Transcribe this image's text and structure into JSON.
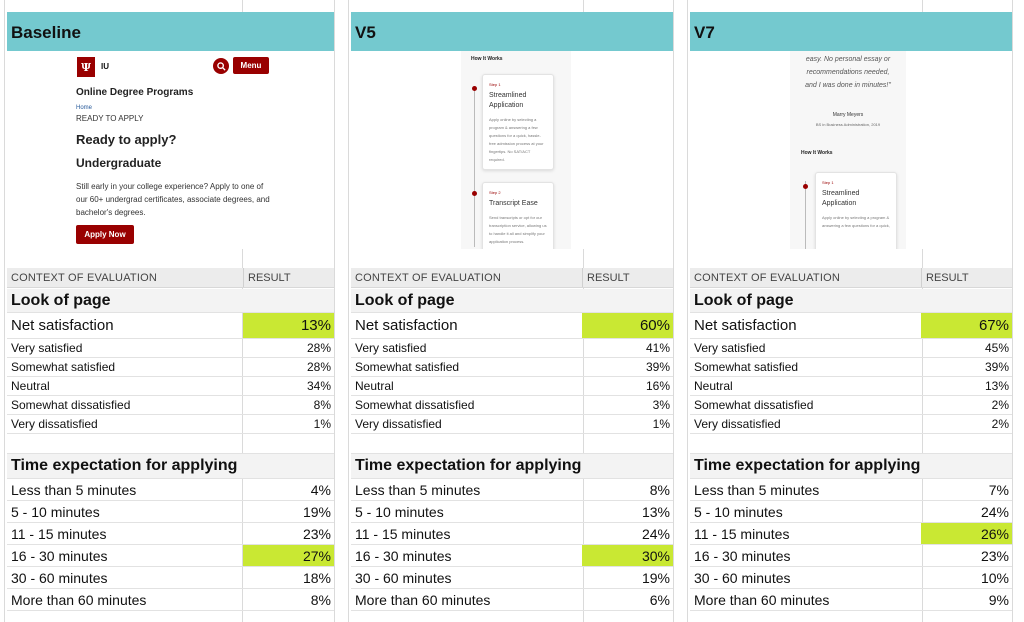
{
  "columns": [
    {
      "title": "Baseline",
      "preview": {
        "logo_text": "IU",
        "logo_mark": "Ψ",
        "menu_label": "Menu",
        "heading": "Online Degree Programs",
        "breadcrumb": "Home",
        "eyebrow": "READY TO APPLY",
        "title": "Ready to apply?",
        "subtitle": "Undergraduate",
        "description": "Still early in your college experience? Apply to one of our 60+ undergrad certificates, associate degrees, and bachelor's degrees.",
        "button": "Apply Now"
      },
      "context_header": "CONTEXT OF EVALUATION",
      "result_header": "RESULT",
      "look_section": "Look of page",
      "net_label": "Net satisfaction",
      "net_value": "13%",
      "satisfaction": [
        {
          "label": "Very satisfied",
          "value": "28%"
        },
        {
          "label": "Somewhat satisfied",
          "value": "28%"
        },
        {
          "label": "Neutral",
          "value": "34%"
        },
        {
          "label": "Somewhat dissatisfied",
          "value": "8%"
        },
        {
          "label": "Very dissatisfied",
          "value": "1%"
        }
      ],
      "time_section": "Time expectation for applying",
      "time": [
        {
          "label": "Less than 5 minutes",
          "value": "4%",
          "highlight": false
        },
        {
          "label": "5 - 10 minutes",
          "value": "19%",
          "highlight": false
        },
        {
          "label": "11 - 15 minutes",
          "value": "23%",
          "highlight": false
        },
        {
          "label": "16 - 30 minutes",
          "value": "27%",
          "highlight": true
        },
        {
          "label": "30 - 60 minutes",
          "value": "18%",
          "highlight": false
        },
        {
          "label": "More than 60 minutes",
          "value": "8%",
          "highlight": false
        }
      ]
    },
    {
      "title": "V5",
      "preview": {
        "how_it_works": "How It Works",
        "step1_label": "Step 1",
        "step1_title": "Streamlined Application",
        "step1_text": "Apply online by selecting a program & answering a few questions for a quick, hassle-free admission process at your fingertips. No SAT/ACT required.",
        "step2_label": "Step 2",
        "step2_title": "Transcript Ease",
        "step2_text": "Send transcripts or opt for our transcription service, allowing us to handle it all and simplify your application process."
      },
      "context_header": "CONTEXT OF EVALUATION",
      "result_header": "RESULT",
      "look_section": "Look of page",
      "net_label": "Net satisfaction",
      "net_value": "60%",
      "satisfaction": [
        {
          "label": "Very satisfied",
          "value": "41%"
        },
        {
          "label": "Somewhat satisfied",
          "value": "39%"
        },
        {
          "label": "Neutral",
          "value": "16%"
        },
        {
          "label": "Somewhat dissatisfied",
          "value": "3%"
        },
        {
          "label": "Very dissatisfied",
          "value": "1%"
        }
      ],
      "time_section": "Time expectation for applying",
      "time": [
        {
          "label": "Less than 5 minutes",
          "value": "8%",
          "highlight": false
        },
        {
          "label": "5 - 10 minutes",
          "value": "13%",
          "highlight": false
        },
        {
          "label": "11 - 15 minutes",
          "value": "24%",
          "highlight": false
        },
        {
          "label": "16 - 30 minutes",
          "value": "30%",
          "highlight": true
        },
        {
          "label": "30 - 60 minutes",
          "value": "19%",
          "highlight": false
        },
        {
          "label": "More than 60 minutes",
          "value": "6%",
          "highlight": false
        }
      ]
    },
    {
      "title": "V7",
      "preview": {
        "quote_line1": "easy. No personal essay or",
        "quote_line2": "recommendations needed,",
        "quote_line3": "and I was done in minutes!\"",
        "author": "Marry Meyers",
        "degree": "BS in Business Administration, 2019",
        "how_it_works": "How It Works",
        "step1_label": "Step 1",
        "step1_title": "Streamlined Application",
        "step1_text": "Apply online by selecting a program & answering a few questions for a quick,"
      },
      "context_header": "CONTEXT OF EVALUATION",
      "result_header": "RESULT",
      "look_section": "Look of page",
      "net_label": "Net satisfaction",
      "net_value": "67%",
      "satisfaction": [
        {
          "label": "Very satisfied",
          "value": "45%"
        },
        {
          "label": "Somewhat satisfied",
          "value": "39%"
        },
        {
          "label": "Neutral",
          "value": "13%"
        },
        {
          "label": "Somewhat dissatisfied",
          "value": "2%"
        },
        {
          "label": "Very dissatisfied",
          "value": "2%"
        }
      ],
      "time_section": "Time expectation for applying",
      "time": [
        {
          "label": "Less than 5 minutes",
          "value": "7%",
          "highlight": false
        },
        {
          "label": "5 - 10 minutes",
          "value": "24%",
          "highlight": false
        },
        {
          "label": "11 - 15 minutes",
          "value": "26%",
          "highlight": true
        },
        {
          "label": "16 - 30 minutes",
          "value": "23%",
          "highlight": false
        },
        {
          "label": "30 - 60 minutes",
          "value": "10%",
          "highlight": false
        },
        {
          "label": "More than 60 minutes",
          "value": "9%",
          "highlight": false
        }
      ]
    }
  ],
  "colors": {
    "header_bg": "#74c9cf",
    "highlight": "#c9e833",
    "brand": "#990000"
  }
}
